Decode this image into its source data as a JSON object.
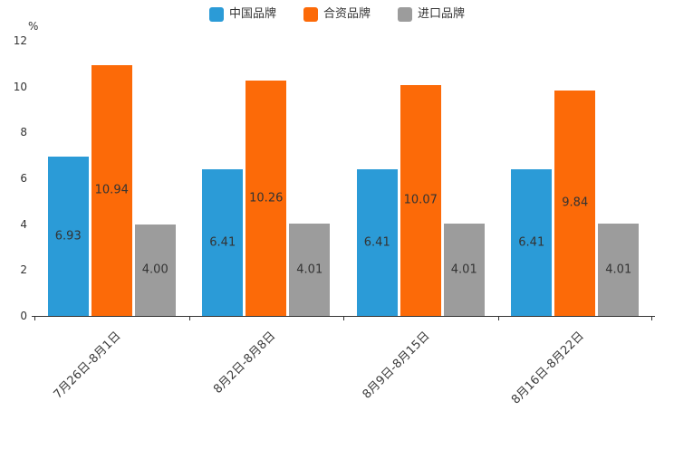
{
  "chart_data": {
    "type": "bar",
    "title": "",
    "xlabel": "",
    "ylabel": "%",
    "ylim": [
      0,
      12
    ],
    "yticks": [
      0,
      2,
      4,
      6,
      8,
      10,
      12
    ],
    "grid": false,
    "legend_position": "top-center",
    "value_labels": "inside-middle",
    "categories": [
      "7月26日-8月1日",
      "8月2日-8月8日",
      "8月9日-8月15日",
      "8月16日-8月22日"
    ],
    "series": [
      {
        "name": "中国品牌",
        "color": "#2b9bd7",
        "values": [
          6.93,
          6.41,
          6.41,
          6.41
        ]
      },
      {
        "name": "合资品牌",
        "color": "#fc6a08",
        "values": [
          10.94,
          10.26,
          10.07,
          9.84
        ]
      },
      {
        "name": "进口品牌",
        "color": "#9c9c9c",
        "values": [
          4.0,
          4.01,
          4.01,
          4.01
        ]
      }
    ]
  }
}
